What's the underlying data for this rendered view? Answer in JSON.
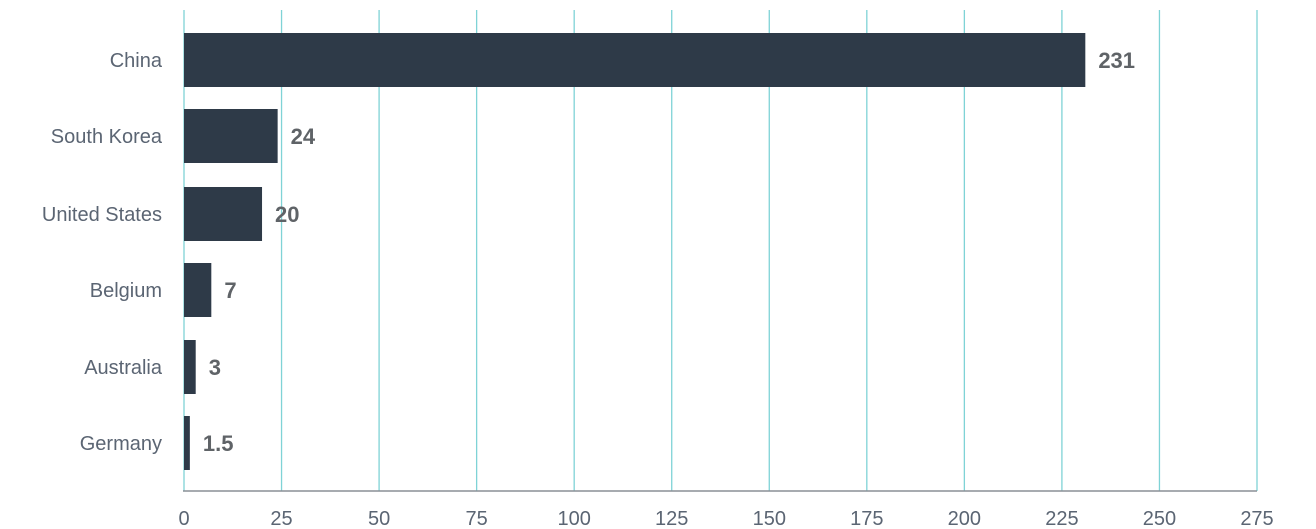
{
  "chart_data": {
    "type": "bar",
    "orientation": "horizontal",
    "categories": [
      "China",
      "South Korea",
      "United States",
      "Belgium",
      "Australia",
      "Germany"
    ],
    "values": [
      231,
      24,
      20,
      7,
      3,
      1.5
    ],
    "data_labels": [
      "231",
      "24",
      "20",
      "7",
      "3",
      "1.5"
    ],
    "xlim": [
      0,
      275
    ],
    "xticks": [
      0,
      25,
      50,
      75,
      100,
      125,
      150,
      175,
      200,
      225,
      250,
      275
    ],
    "grid": true,
    "legend": "none",
    "title": "",
    "xlabel": "",
    "ylabel": "",
    "colors": {
      "bar": "#2e3a48",
      "grid": "#7fd3d6",
      "axis": "#8a8f96",
      "tick_text": "#5b6573",
      "data_label": "#5f6367"
    }
  }
}
